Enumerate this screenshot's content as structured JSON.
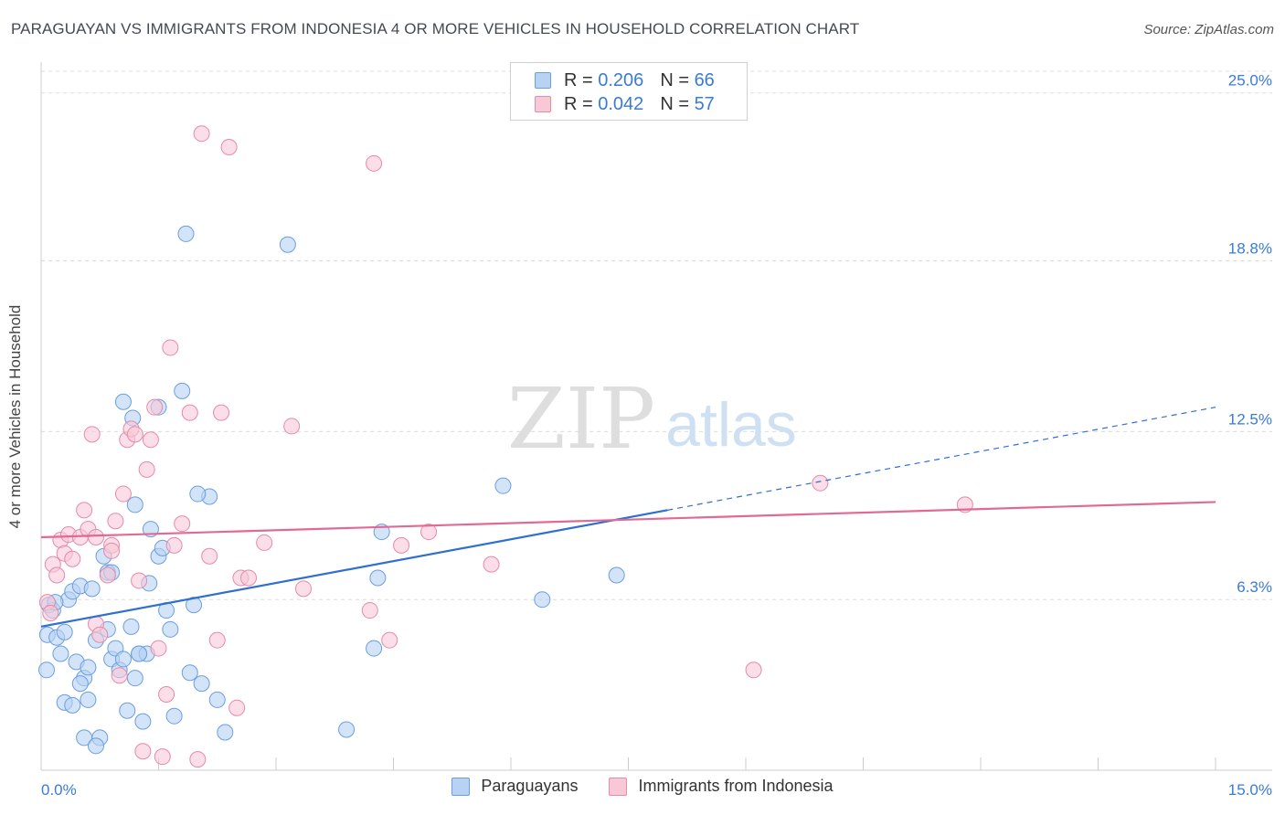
{
  "header": {
    "title": "PARAGUAYAN VS IMMIGRANTS FROM INDONESIA 4 OR MORE VEHICLES IN HOUSEHOLD CORRELATION CHART",
    "source": "Source: ZipAtlas.com"
  },
  "watermark": {
    "zip": "ZIP",
    "atlas": "atlas"
  },
  "legend": {
    "series": [
      {
        "r_label": "R =",
        "r_value": "0.206",
        "n_label": "N =",
        "n_value": "66",
        "fill": "#b7d2f3",
        "stroke": "#6a9ee0"
      },
      {
        "r_label": "R =",
        "r_value": "0.042",
        "n_label": "N =",
        "n_value": "57",
        "fill": "#f8c8d7",
        "stroke": "#e58aa9"
      }
    ]
  },
  "bottom_legend": {
    "items": [
      {
        "label": "Paraguayans"
      },
      {
        "label": "Immigrants from Indonesia"
      }
    ]
  },
  "chart_data": {
    "type": "scatter",
    "title": "PARAGUAYAN VS IMMIGRANTS FROM INDONESIA 4 OR MORE VEHICLES IN HOUSEHOLD CORRELATION CHART",
    "xlabel": "",
    "ylabel": "4 or more Vehicles in Household",
    "xlim": [
      0,
      15
    ],
    "ylim": [
      0,
      25.8
    ],
    "x_tick_labels": [
      "0.0%",
      "15.0%"
    ],
    "y_ticks": [
      6.3,
      12.5,
      18.8,
      25.0
    ],
    "y_tick_labels": [
      "6.3%",
      "12.5%",
      "18.8%",
      "25.0%"
    ],
    "grid": true,
    "series": [
      {
        "name": "Paraguayans",
        "color": "#6a9ee0",
        "fill": "#b7d2f3",
        "trend": {
          "x0": 0.0,
          "y0": 5.3,
          "x1": 8.0,
          "y1": 9.6,
          "dashed_to_x": 15.0,
          "dashed_to_y": 13.4,
          "color": "#2f6fd0"
        },
        "points": [
          [
            0.08,
            5.0
          ],
          [
            0.1,
            6.1
          ],
          [
            0.15,
            5.9
          ],
          [
            0.2,
            4.9
          ],
          [
            0.25,
            4.3
          ],
          [
            0.3,
            5.1
          ],
          [
            0.35,
            6.3
          ],
          [
            0.4,
            6.6
          ],
          [
            0.45,
            4.0
          ],
          [
            0.5,
            6.8
          ],
          [
            0.55,
            3.4
          ],
          [
            0.6,
            3.8
          ],
          [
            0.65,
            6.7
          ],
          [
            0.7,
            4.8
          ],
          [
            0.75,
            1.2
          ],
          [
            0.8,
            7.9
          ],
          [
            0.85,
            5.2
          ],
          [
            0.9,
            4.1
          ],
          [
            0.95,
            4.5
          ],
          [
            1.0,
            3.7
          ],
          [
            1.05,
            4.1
          ],
          [
            1.1,
            2.2
          ],
          [
            1.15,
            5.3
          ],
          [
            1.2,
            3.4
          ],
          [
            1.25,
            4.3
          ],
          [
            1.3,
            1.8
          ],
          [
            1.35,
            4.3
          ],
          [
            1.4,
            8.9
          ],
          [
            1.5,
            7.9
          ],
          [
            1.6,
            5.9
          ],
          [
            1.65,
            5.2
          ],
          [
            1.7,
            2.0
          ],
          [
            1.8,
            14.0
          ],
          [
            1.9,
            3.6
          ],
          [
            1.95,
            6.1
          ],
          [
            2.05,
            3.2
          ],
          [
            2.15,
            10.1
          ],
          [
            2.25,
            2.6
          ],
          [
            2.35,
            1.4
          ],
          [
            3.15,
            19.4
          ],
          [
            3.9,
            1.5
          ],
          [
            4.25,
            4.5
          ],
          [
            4.3,
            7.1
          ],
          [
            4.35,
            8.8
          ],
          [
            5.9,
            10.5
          ],
          [
            6.4,
            6.3
          ],
          [
            7.35,
            7.2
          ],
          [
            1.05,
            13.6
          ],
          [
            1.5,
            13.4
          ],
          [
            1.17,
            13.0
          ],
          [
            1.85,
            19.8
          ],
          [
            1.2,
            9.8
          ],
          [
            0.07,
            3.7
          ],
          [
            0.3,
            2.5
          ],
          [
            0.4,
            2.4
          ],
          [
            0.5,
            3.2
          ],
          [
            0.55,
            1.2
          ],
          [
            0.7,
            0.9
          ],
          [
            0.85,
            7.3
          ],
          [
            0.9,
            7.3
          ],
          [
            1.25,
            4.3
          ],
          [
            1.38,
            6.9
          ],
          [
            1.55,
            8.2
          ],
          [
            2.0,
            10.2
          ],
          [
            0.18,
            6.2
          ],
          [
            0.6,
            2.6
          ]
        ]
      },
      {
        "name": "Immigrants from Indonesia",
        "color": "#e58aa9",
        "fill": "#f8c8d7",
        "trend": {
          "x0": 0.0,
          "y0": 8.6,
          "x1": 15.0,
          "y1": 9.9,
          "color": "#e06a95"
        },
        "points": [
          [
            0.08,
            6.2
          ],
          [
            0.12,
            5.8
          ],
          [
            0.15,
            7.6
          ],
          [
            0.2,
            7.2
          ],
          [
            0.25,
            8.5
          ],
          [
            0.3,
            8.0
          ],
          [
            0.35,
            8.7
          ],
          [
            0.4,
            7.8
          ],
          [
            0.5,
            8.6
          ],
          [
            0.55,
            9.6
          ],
          [
            0.6,
            8.9
          ],
          [
            0.65,
            12.4
          ],
          [
            0.7,
            5.4
          ],
          [
            0.75,
            5.0
          ],
          [
            0.85,
            7.2
          ],
          [
            0.9,
            8.3
          ],
          [
            0.95,
            9.2
          ],
          [
            1.0,
            3.5
          ],
          [
            1.05,
            10.2
          ],
          [
            1.1,
            12.2
          ],
          [
            1.15,
            12.6
          ],
          [
            1.2,
            12.4
          ],
          [
            1.25,
            7.0
          ],
          [
            1.3,
            0.7
          ],
          [
            1.35,
            11.1
          ],
          [
            1.4,
            12.2
          ],
          [
            1.45,
            13.4
          ],
          [
            1.5,
            4.5
          ],
          [
            1.55,
            0.5
          ],
          [
            1.6,
            2.8
          ],
          [
            1.65,
            15.6
          ],
          [
            1.7,
            8.3
          ],
          [
            1.8,
            9.1
          ],
          [
            1.9,
            13.2
          ],
          [
            2.0,
            0.4
          ],
          [
            2.05,
            23.5
          ],
          [
            2.15,
            7.9
          ],
          [
            2.25,
            4.8
          ],
          [
            2.3,
            13.2
          ],
          [
            2.4,
            23.0
          ],
          [
            2.5,
            2.3
          ],
          [
            2.55,
            7.1
          ],
          [
            2.65,
            7.1
          ],
          [
            2.85,
            8.4
          ],
          [
            3.2,
            12.7
          ],
          [
            3.35,
            6.7
          ],
          [
            4.2,
            5.9
          ],
          [
            4.25,
            22.4
          ],
          [
            4.45,
            4.8
          ],
          [
            4.6,
            8.3
          ],
          [
            4.95,
            8.8
          ],
          [
            5.75,
            7.6
          ],
          [
            9.1,
            3.7
          ],
          [
            9.95,
            10.6
          ],
          [
            11.8,
            9.8
          ],
          [
            0.9,
            8.1
          ],
          [
            0.7,
            8.6
          ]
        ]
      }
    ]
  }
}
